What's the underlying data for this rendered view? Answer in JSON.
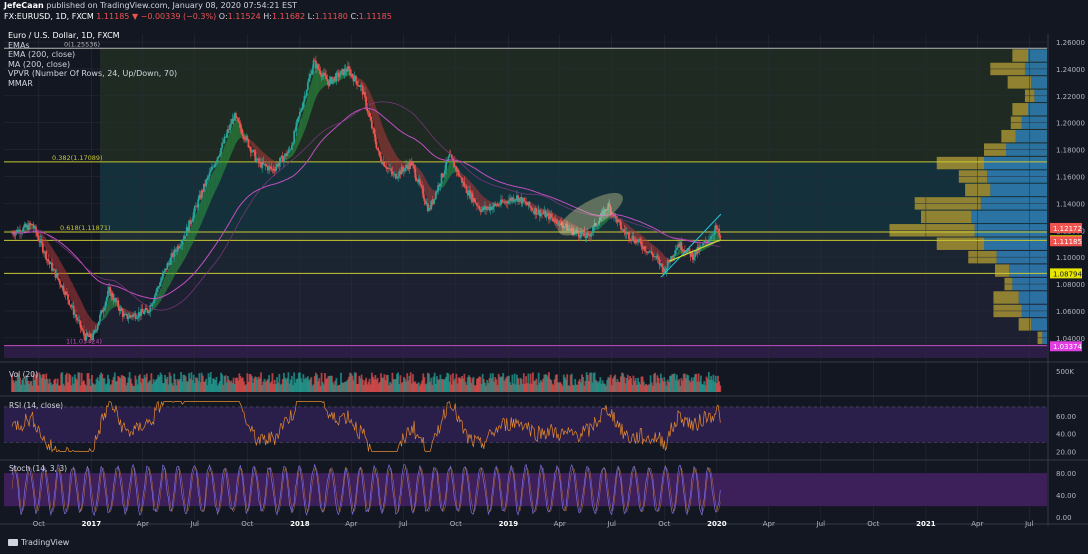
{
  "header": {
    "author": "JefeCaan",
    "published": "published on TradingView.com, January 08, 2020 07:54:21 EST"
  },
  "symbol": {
    "name": "FX:EURUSD, 1D, FXCM",
    "last": "1.11185",
    "change": "▼ −0.00339 (−0.3%)",
    "o_label": "O:",
    "o": "1.11524",
    "h_label": "H:",
    "h": "1.11682",
    "l_label": "L:",
    "l": "1.11180",
    "c_label": "C:",
    "c": "1.11185"
  },
  "legend": {
    "title": "Euro / U.S. Dollar, 1D, FXCM",
    "items": [
      "EMAs",
      "EMA (200, close)",
      "MA (200, close)",
      "VPVR (Number Of Rows, 24, Up/Down, 70)",
      "MMAR"
    ]
  },
  "panes": {
    "vol_label": "Vol (20)",
    "rsi_label": "RSI (14, close)",
    "stoch_label": "Stoch (14, 3, 3)"
  },
  "footer": {
    "brand": "TradingView"
  },
  "colors": {
    "background": "#131722",
    "up": "#26a69a",
    "down": "#ef5350",
    "ema200": "#c14fc1",
    "fib_line": "#c8c832",
    "vpvr_up": "#2f7fb5",
    "vpvr_down": "#a59233",
    "rsi_band": "#2a1e4a",
    "rsi_line": "#e58a2f",
    "stoch_line": "#7c6ee6",
    "stoch_band": "#3d1f5a"
  },
  "chart_data": {
    "type": "candlestick",
    "title": "Euro / U.S. Dollar, 1D, FXCM",
    "symbol": "FX:EURUSD",
    "timeframe": "1D",
    "ylim": [
      1.025,
      1.266
    ],
    "y_ticks": [
      "1.26000",
      "1.24000",
      "1.22000",
      "1.20000",
      "1.18000",
      "1.16000",
      "1.14000",
      "1.12000",
      "1.10000",
      "1.08000",
      "1.06000",
      "1.04000"
    ],
    "x_ticks": [
      "Oct",
      "2017",
      "Apr",
      "Jul",
      "Oct",
      "2018",
      "Apr",
      "Jul",
      "Oct",
      "2019",
      "Apr",
      "Jul",
      "Oct",
      "2020",
      "Apr",
      "Jul",
      "Oct",
      "2021",
      "Apr",
      "Jul"
    ],
    "x_tick_dates": [
      "2016-10-01",
      "2017-01-01",
      "2017-04-01",
      "2017-07-01",
      "2017-10-01",
      "2018-01-01",
      "2018-04-01",
      "2018-07-01",
      "2018-10-01",
      "2019-01-01",
      "2019-04-01",
      "2019-07-01",
      "2019-10-01",
      "2020-01-01",
      "2020-04-01",
      "2020-07-01",
      "2020-10-01",
      "2021-01-01",
      "2021-04-01",
      "2021-07-01"
    ],
    "close_path": [
      {
        "date": "2016-08-15",
        "close": 1.118
      },
      {
        "date": "2016-09-20",
        "close": 1.124
      },
      {
        "date": "2016-10-20",
        "close": 1.095
      },
      {
        "date": "2016-11-15",
        "close": 1.075
      },
      {
        "date": "2016-12-20",
        "close": 1.041
      },
      {
        "date": "2017-01-03",
        "close": 1.04
      },
      {
        "date": "2017-02-01",
        "close": 1.075
      },
      {
        "date": "2017-03-01",
        "close": 1.055
      },
      {
        "date": "2017-04-10",
        "close": 1.06
      },
      {
        "date": "2017-05-15",
        "close": 1.095
      },
      {
        "date": "2017-06-15",
        "close": 1.118
      },
      {
        "date": "2017-07-15",
        "close": 1.15
      },
      {
        "date": "2017-08-20",
        "close": 1.185
      },
      {
        "date": "2017-09-08",
        "close": 1.205
      },
      {
        "date": "2017-10-20",
        "close": 1.17
      },
      {
        "date": "2017-11-15",
        "close": 1.165
      },
      {
        "date": "2017-12-15",
        "close": 1.18
      },
      {
        "date": "2018-01-25",
        "close": 1.245
      },
      {
        "date": "2018-02-20",
        "close": 1.23
      },
      {
        "date": "2018-03-25",
        "close": 1.24
      },
      {
        "date": "2018-04-20",
        "close": 1.225
      },
      {
        "date": "2018-05-20",
        "close": 1.175
      },
      {
        "date": "2018-06-15",
        "close": 1.16
      },
      {
        "date": "2018-07-15",
        "close": 1.17
      },
      {
        "date": "2018-08-15",
        "close": 1.135
      },
      {
        "date": "2018-09-20",
        "close": 1.175
      },
      {
        "date": "2018-10-20",
        "close": 1.15
      },
      {
        "date": "2018-11-15",
        "close": 1.135
      },
      {
        "date": "2018-12-20",
        "close": 1.14
      },
      {
        "date": "2019-01-15",
        "close": 1.145
      },
      {
        "date": "2019-02-15",
        "close": 1.135
      },
      {
        "date": "2019-03-15",
        "close": 1.13
      },
      {
        "date": "2019-04-20",
        "close": 1.12
      },
      {
        "date": "2019-05-20",
        "close": 1.115
      },
      {
        "date": "2019-06-25",
        "close": 1.138
      },
      {
        "date": "2019-07-20",
        "close": 1.12
      },
      {
        "date": "2019-08-20",
        "close": 1.11
      },
      {
        "date": "2019-09-15",
        "close": 1.1
      },
      {
        "date": "2019-10-01",
        "close": 1.09
      },
      {
        "date": "2019-10-25",
        "close": 1.11
      },
      {
        "date": "2019-11-20",
        "close": 1.101
      },
      {
        "date": "2019-12-15",
        "close": 1.112
      },
      {
        "date": "2019-12-31",
        "close": 1.122
      },
      {
        "date": "2020-01-08",
        "close": 1.112
      }
    ],
    "horizontal_lines": [
      {
        "label": "0(1.25536)",
        "price": 1.25536,
        "color": "#b5b5b5"
      },
      {
        "label": "0.382(1.17089)",
        "price": 1.17089,
        "color": "#c8c832"
      },
      {
        "label": "0.618(1.11871)",
        "price": 1.11871,
        "color": "#c8c832"
      },
      {
        "label": "",
        "price": 1.11253,
        "color": "#c8c832"
      },
      {
        "label": "",
        "price": 1.08794,
        "color": "#c8c832"
      },
      {
        "label": "1(1.03424)",
        "price": 1.03424,
        "color": "#c14fc1"
      }
    ],
    "price_tags": [
      {
        "value": "1.12172",
        "price": 1.12172,
        "bg": "#ef5350",
        "fg": "#ffffff"
      },
      {
        "value": "1.11253",
        "price": 1.11253,
        "bg": "#e6e600",
        "fg": "#131722"
      },
      {
        "value": "1.11185",
        "price": 1.11185,
        "bg": "#ef5350",
        "fg": "#ffffff"
      },
      {
        "value": "1.08794",
        "price": 1.08794,
        "bg": "#e6e600",
        "fg": "#131722"
      },
      {
        "value": "1.03374",
        "price": 1.03374,
        "bg": "#e03ee0",
        "fg": "#ffffff"
      }
    ],
    "vpvr_profile": [
      {
        "price": 1.25,
        "up": 0.12,
        "down": 0.1
      },
      {
        "price": 1.24,
        "up": 0.14,
        "down": 0.22
      },
      {
        "price": 1.23,
        "up": 0.1,
        "down": 0.15
      },
      {
        "price": 1.22,
        "up": 0.08,
        "down": 0.06
      },
      {
        "price": 1.21,
        "up": 0.12,
        "down": 0.1
      },
      {
        "price": 1.2,
        "up": 0.16,
        "down": 0.07
      },
      {
        "price": 1.19,
        "up": 0.2,
        "down": 0.09
      },
      {
        "price": 1.18,
        "up": 0.26,
        "down": 0.14
      },
      {
        "price": 1.17,
        "up": 0.4,
        "down": 0.3
      },
      {
        "price": 1.16,
        "up": 0.38,
        "down": 0.18
      },
      {
        "price": 1.15,
        "up": 0.36,
        "down": 0.16
      },
      {
        "price": 1.14,
        "up": 0.42,
        "down": 0.42
      },
      {
        "price": 1.13,
        "up": 0.48,
        "down": 0.32
      },
      {
        "price": 1.12,
        "up": 0.46,
        "down": 0.54
      },
      {
        "price": 1.11,
        "up": 0.4,
        "down": 0.3
      },
      {
        "price": 1.1,
        "up": 0.32,
        "down": 0.18
      },
      {
        "price": 1.09,
        "up": 0.24,
        "down": 0.09
      },
      {
        "price": 1.08,
        "up": 0.22,
        "down": 0.05
      },
      {
        "price": 1.07,
        "up": 0.18,
        "down": 0.16
      },
      {
        "price": 1.06,
        "up": 0.16,
        "down": 0.18
      },
      {
        "price": 1.05,
        "up": 0.1,
        "down": 0.08
      },
      {
        "price": 1.04,
        "up": 0.03,
        "down": 0.03
      }
    ],
    "volume": {
      "y_ticks": [
        "500K"
      ],
      "note": "bars sized per session"
    },
    "rsi": {
      "y_ticks": [
        "60.00",
        "40.00",
        "20.00"
      ],
      "band": [
        30,
        70
      ],
      "ylim": [
        15,
        80
      ]
    },
    "stoch": {
      "y_ticks": [
        "80.00",
        "40.00",
        "0.00"
      ],
      "band": [
        20,
        80
      ],
      "ylim": [
        -5,
        100
      ]
    }
  }
}
